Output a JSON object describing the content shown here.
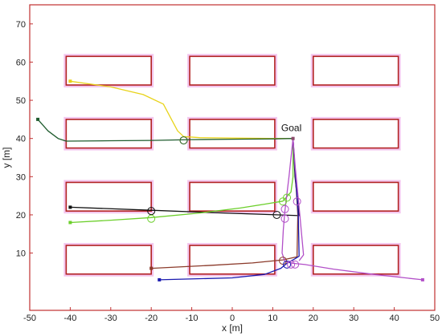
{
  "chart_data": {
    "type": "line",
    "title": "",
    "xlabel": "x [m]",
    "ylabel": "y [m]",
    "xlim": [
      -50,
      50
    ],
    "ylim": [
      -5,
      75
    ],
    "xticks": [
      -50,
      -40,
      -30,
      -20,
      -10,
      0,
      10,
      20,
      30,
      40,
      50
    ],
    "yticks": [
      10,
      20,
      30,
      40,
      50,
      60,
      70
    ],
    "grid": false,
    "legend": "none",
    "annotations": [
      {
        "text": "Goal",
        "x": 15,
        "y": 40
      }
    ],
    "goal": {
      "x": 15,
      "y": 40,
      "color": "#8b4a6b"
    },
    "obstacles": {
      "stroke": "#b22222",
      "halo": "#f3c6ee",
      "rects": [
        {
          "x0": -41,
          "x1": -20,
          "y0": 54,
          "y1": 61.5
        },
        {
          "x0": -10.5,
          "x1": 10.5,
          "y0": 54,
          "y1": 61.5
        },
        {
          "x0": 20,
          "x1": 41,
          "y0": 54,
          "y1": 61.5
        },
        {
          "x0": -41,
          "x1": -20,
          "y0": 37.5,
          "y1": 45
        },
        {
          "x0": -10.5,
          "x1": 10.5,
          "y0": 37.5,
          "y1": 45
        },
        {
          "x0": 20,
          "x1": 41,
          "y0": 37.5,
          "y1": 45
        },
        {
          "x0": -41,
          "x1": -20,
          "y0": 21,
          "y1": 28.5
        },
        {
          "x0": -10.5,
          "x1": 10.5,
          "y0": 21,
          "y1": 28.5
        },
        {
          "x0": 20,
          "x1": 41,
          "y0": 21,
          "y1": 28.5
        },
        {
          "x0": -41,
          "x1": -20,
          "y0": 4.5,
          "y1": 12
        },
        {
          "x0": -10.5,
          "x1": 10.5,
          "y0": 4.5,
          "y1": 12
        },
        {
          "x0": 20,
          "x1": 41,
          "y0": 4.5,
          "y1": 12
        }
      ]
    },
    "series": [
      {
        "color": "#e8d31a",
        "start": [
          -40,
          55
        ],
        "circles": [
          [
            -12,
            39.5
          ]
        ],
        "points": [
          [
            -40,
            55
          ],
          [
            -30,
            53.5
          ],
          [
            -22,
            51.5
          ],
          [
            -17,
            49
          ],
          [
            -15,
            45
          ],
          [
            -13.5,
            42
          ],
          [
            -12,
            40.5
          ],
          [
            -8,
            40.2
          ],
          [
            0,
            40.1
          ],
          [
            10,
            40
          ],
          [
            15,
            40
          ]
        ]
      },
      {
        "color": "#1f5c2e",
        "start": [
          -48,
          45
        ],
        "circles": [
          [
            -12,
            39.5
          ]
        ],
        "points": [
          [
            -48,
            45
          ],
          [
            -45.5,
            42
          ],
          [
            -43,
            40
          ],
          [
            -41,
            39.3
          ],
          [
            -30,
            39.4
          ],
          [
            -20,
            39.5
          ],
          [
            -10,
            39.7
          ],
          [
            0,
            39.8
          ],
          [
            10,
            39.9
          ],
          [
            15,
            40
          ]
        ]
      },
      {
        "color": "#111111",
        "start": [
          -40,
          22
        ],
        "circles": [
          [
            -20,
            21
          ],
          [
            11,
            20
          ]
        ],
        "points": [
          [
            -40,
            22
          ],
          [
            -20,
            21.2
          ],
          [
            0,
            20.4
          ],
          [
            11,
            20
          ],
          [
            16.5,
            19.8
          ],
          [
            15.5,
            30
          ],
          [
            15,
            40
          ]
        ]
      },
      {
        "color": "#6ccf2b",
        "start": [
          -40,
          18
        ],
        "circles": [
          [
            -20,
            19
          ],
          [
            12.5,
            23.5
          ],
          [
            13.5,
            24.5
          ]
        ],
        "points": [
          [
            -40,
            18
          ],
          [
            -30,
            18.6
          ],
          [
            -20,
            19.3
          ],
          [
            -8,
            20.5
          ],
          [
            2,
            21.8
          ],
          [
            8,
            22.8
          ],
          [
            12.5,
            23.6
          ],
          [
            14.5,
            26
          ],
          [
            15,
            30
          ],
          [
            15,
            40
          ]
        ]
      },
      {
        "color": "#8b3a2a",
        "start": [
          -20,
          6
        ],
        "circles": [
          [
            12.5,
            8
          ]
        ],
        "points": [
          [
            -20,
            6
          ],
          [
            -5,
            6.8
          ],
          [
            5,
            7.4
          ],
          [
            12.5,
            8.2
          ],
          [
            16,
            9
          ],
          [
            16.2,
            20
          ],
          [
            15.5,
            32
          ],
          [
            15,
            40
          ]
        ]
      },
      {
        "color": "#1a1ab0",
        "start": [
          -18,
          3
        ],
        "circles": [
          [
            13.5,
            7
          ]
        ],
        "points": [
          [
            -18,
            3
          ],
          [
            0,
            3.5
          ],
          [
            8,
            4.4
          ],
          [
            12,
            6
          ],
          [
            13.5,
            7.3
          ],
          [
            15.5,
            8.5
          ],
          [
            16.5,
            9.2
          ],
          [
            16.3,
            20
          ],
          [
            15.5,
            32
          ],
          [
            15,
            40
          ]
        ]
      },
      {
        "color": "#b24fc8",
        "start": [
          47,
          3
        ],
        "circles": [
          [
            13,
            21.5
          ],
          [
            13,
            19
          ],
          [
            16,
            23.5
          ],
          [
            14.5,
            7
          ],
          [
            15.5,
            7
          ]
        ],
        "points": [
          [
            47,
            3
          ],
          [
            35,
            4.4
          ],
          [
            25,
            5.8
          ],
          [
            18,
            7
          ],
          [
            15,
            7.3
          ],
          [
            13,
            7.8
          ],
          [
            12.3,
            10
          ],
          [
            12.6,
            16
          ],
          [
            13,
            21
          ],
          [
            14,
            30
          ],
          [
            15,
            40
          ],
          [
            15.6,
            32
          ],
          [
            16.5,
            22
          ],
          [
            17.2,
            14
          ],
          [
            17.6,
            9.5
          ],
          [
            16.5,
            8
          ]
        ]
      }
    ]
  }
}
